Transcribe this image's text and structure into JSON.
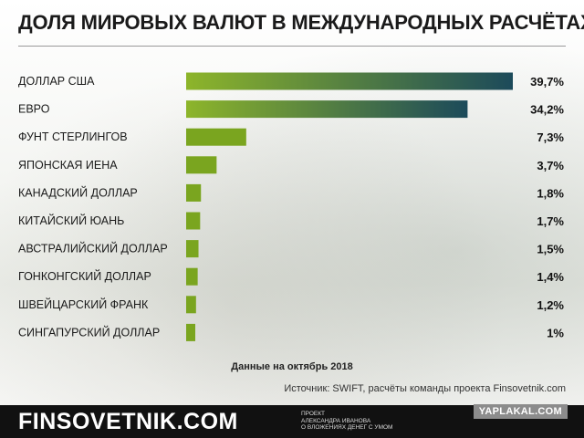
{
  "title": "ДОЛЯ МИРОВЫХ ВАЛЮТ В МЕЖДУНАРОДНЫХ РАСЧЁТАХ",
  "note": "Данные на октябрь 2018",
  "source": "Источник: SWIFT, расчёты команды проекта Finsovetnik.com",
  "footer": {
    "brand": "FINSOVETNIK.COM",
    "project_line1": "ПРОЕКТ",
    "project_line2": "АЛЕКСАНДРА ИВАНОВА",
    "project_line3": "О ВЛОЖЕНИЯХ ДЕНЕГ С УМОМ",
    "watermark": "YAPLAKAL.COM"
  },
  "colors": {
    "bar_start": "#8db52a",
    "bar_end": "#1c4a5a",
    "bar_small": "#7aa51f"
  },
  "chart_data": {
    "type": "bar",
    "orientation": "horizontal",
    "categories": [
      "ДОЛЛАР США",
      "ЕВРО",
      "ФУНТ СТЕРЛИНГОВ",
      "ЯПОНСКАЯ ИЕНА",
      "КАНАДСКИЙ ДОЛЛАР",
      "КИТАЙСКИЙ ЮАНЬ",
      "АВСТРАЛИЙСКИЙ ДОЛЛАР",
      "ГОНКОНГСКИЙ ДОЛЛАР",
      "ШВЕЙЦАРСКИЙ ФРАНК",
      "СИНГАПУРСКИЙ ДОЛЛАР"
    ],
    "values": [
      39.7,
      34.2,
      7.3,
      3.7,
      1.8,
      1.7,
      1.5,
      1.4,
      1.2,
      1.0
    ],
    "value_labels": [
      "39,7%",
      "34,2%",
      "7,3%",
      "3,7%",
      "1,8%",
      "1,7%",
      "1,5%",
      "1,4%",
      "1,2%",
      "1%"
    ],
    "unit": "%",
    "grid": false,
    "legend": "none"
  }
}
